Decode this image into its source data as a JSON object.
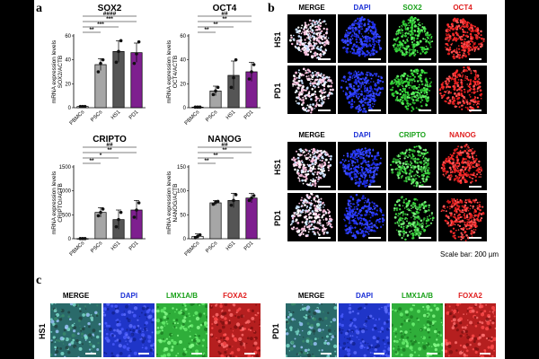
{
  "figure": {
    "panel_labels": {
      "a": "a",
      "b": "b",
      "c": "c"
    },
    "scale_bar_text": "Scale bar: 200 µm"
  },
  "panel_b": {
    "block1": {
      "headers": [
        "MERGE",
        "DAPI",
        "SOX2",
        "OCT4"
      ],
      "rows": [
        "HS1",
        "PD1"
      ]
    },
    "block2": {
      "headers": [
        "MERGE",
        "DAPI",
        "CRIPTO",
        "NANOG"
      ],
      "rows": [
        "HS1",
        "PD1"
      ]
    },
    "header_colors": {
      "MERGE": "#000000",
      "DAPI": "#1a2fd6",
      "SOX2": "#1aa11a",
      "OCT4": "#e01f1f",
      "CRIPTO": "#1aa11a",
      "NANOG": "#e01f1f"
    }
  },
  "panel_c": {
    "left": {
      "row": "HS1",
      "headers": [
        "MERGE",
        "DAPI",
        "LMX1A/B",
        "FOXA2"
      ]
    },
    "right": {
      "row": "PD1",
      "headers": [
        "MERGE",
        "DAPI",
        "LMX1A/B",
        "FOXA2"
      ]
    }
  },
  "chart_data": [
    {
      "type": "bar",
      "title": "SOX2",
      "ylabel": "mRNA expression levels\nSOX2/ACTB",
      "categories": [
        "PBMCs",
        "PSCs",
        "HS1",
        "PD1"
      ],
      "values": [
        1,
        36,
        47,
        46
      ],
      "errors": [
        0.5,
        5,
        9,
        8
      ],
      "points": [
        [
          1,
          1,
          1
        ],
        [
          30,
          37,
          40
        ],
        [
          38,
          47,
          56
        ],
        [
          37,
          45,
          55
        ]
      ],
      "ylim": [
        0,
        60
      ],
      "yticks": [
        0,
        20,
        40,
        60
      ],
      "colors": [
        "#ffffff",
        "#a6a6a6",
        "#555555",
        "#7e1f8f"
      ],
      "significance": [
        {
          "from": 0,
          "to": 1,
          "label": "**"
        },
        {
          "from": 0,
          "to": 2,
          "label": "***"
        },
        {
          "from": 0,
          "to": 3,
          "label": "***"
        },
        {
          "from": 0,
          "to": 3,
          "label": "####"
        }
      ]
    },
    {
      "type": "bar",
      "title": "OCT4",
      "ylabel": "mRNA expression levels\nOCT4/ACTB",
      "categories": [
        "PBMCs",
        "PSCs",
        "HS1",
        "PD1"
      ],
      "values": [
        0.5,
        14,
        27,
        30
      ],
      "errors": [
        0.3,
        4,
        12,
        8
      ],
      "points": [
        [
          0.5,
          0.5,
          0.5
        ],
        [
          11,
          14,
          17
        ],
        [
          17,
          25,
          40
        ],
        [
          24,
          30,
          36
        ]
      ],
      "ylim": [
        0,
        60
      ],
      "yticks": [
        0,
        20,
        40,
        60
      ],
      "colors": [
        "#ffffff",
        "#a6a6a6",
        "#555555",
        "#7e1f8f"
      ],
      "significance": [
        {
          "from": 0,
          "to": 1,
          "label": "**"
        },
        {
          "from": 0,
          "to": 2,
          "label": "**"
        },
        {
          "from": 0,
          "to": 3,
          "label": "**"
        },
        {
          "from": 0,
          "to": 3,
          "label": "##"
        }
      ]
    },
    {
      "type": "bar",
      "title": "CRIPTO",
      "ylabel": "mRNA expression levels\nCRIPTO/ACTB",
      "categories": [
        "PBMCs",
        "PSCs",
        "HS1",
        "PD1"
      ],
      "values": [
        3,
        550,
        400,
        600
      ],
      "errors": [
        2,
        100,
        200,
        200
      ],
      "points": [
        [
          3,
          3,
          3
        ],
        [
          480,
          550,
          620
        ],
        [
          250,
          400,
          550
        ],
        [
          450,
          600,
          750
        ]
      ],
      "ylim": [
        0,
        1500
      ],
      "yticks": [
        0,
        500,
        1000,
        1500
      ],
      "colors": [
        "#ffffff",
        "#a6a6a6",
        "#555555",
        "#7e1f8f"
      ],
      "significance": [
        {
          "from": 0,
          "to": 1,
          "label": "**"
        },
        {
          "from": 0,
          "to": 2,
          "label": "*"
        },
        {
          "from": 0,
          "to": 3,
          "label": "**"
        },
        {
          "from": 0,
          "to": 3,
          "label": "##"
        }
      ]
    },
    {
      "type": "bar",
      "title": "NANOG",
      "ylabel": "mRNA expression levels\nNANOG/ACTB",
      "categories": [
        "PBMCs",
        "PSCs",
        "HS1",
        "PD1"
      ],
      "values": [
        5,
        75,
        80,
        85
      ],
      "errors": [
        5,
        5,
        15,
        10
      ],
      "points": [
        [
          2,
          5,
          8
        ],
        [
          72,
          76,
          78
        ],
        [
          70,
          80,
          92
        ],
        [
          80,
          85,
          90
        ]
      ],
      "ylim": [
        0,
        150
      ],
      "yticks": [
        0,
        50,
        100,
        150
      ],
      "colors": [
        "#ffffff",
        "#a6a6a6",
        "#555555",
        "#7e1f8f"
      ],
      "significance": [
        {
          "from": 0,
          "to": 1,
          "label": "**"
        },
        {
          "from": 0,
          "to": 2,
          "label": "**"
        },
        {
          "from": 0,
          "to": 3,
          "label": "**"
        },
        {
          "from": 0,
          "to": 3,
          "label": "##"
        }
      ]
    }
  ]
}
